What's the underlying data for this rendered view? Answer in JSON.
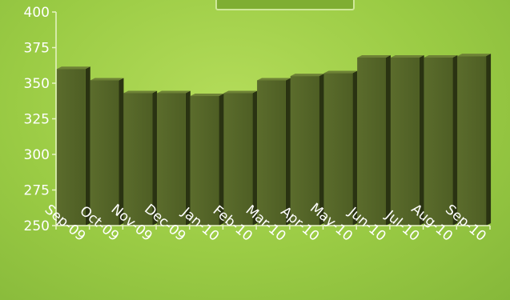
{
  "colors": {
    "bar_front": "#4e5e24",
    "bar_front_light": "#5b6c2c",
    "bar_side": "#2a3312",
    "bar_top": "#6e8236",
    "axis": "#e8f4c8",
    "legend_fill": "#7fae33",
    "legend_border": "#cfe89a"
  },
  "chart_data": {
    "type": "bar",
    "categories": [
      "Sep-09",
      "Oct-09",
      "Nov-09",
      "Dec-09",
      "Jan-10",
      "Feb-10",
      "Mar-10",
      "Apr-10",
      "May-10",
      "Jun-10",
      "Jul-10",
      "Aug-10",
      "Sep-10"
    ],
    "values": [
      360,
      352,
      343,
      343,
      341,
      343,
      352,
      355,
      357,
      368,
      368,
      368,
      369
    ],
    "ylim": [
      250,
      400
    ],
    "yticks": [
      250,
      275,
      300,
      325,
      350,
      375,
      400
    ],
    "grid": false,
    "legend_position": "top-center",
    "title": "",
    "xlabel": "",
    "ylabel": ""
  }
}
